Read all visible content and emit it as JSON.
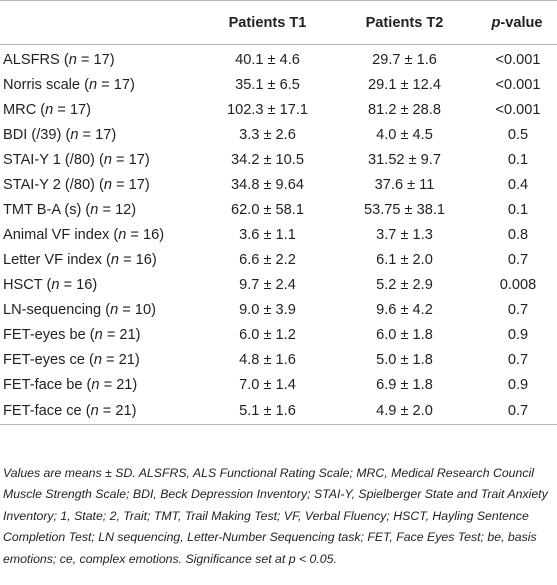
{
  "table": {
    "headers": [
      "",
      "Patients T1",
      "Patients T2",
      "p-value"
    ],
    "rows": [
      {
        "label": "ALSFRS",
        "n": "17",
        "t1": "40.1 ± 4.6",
        "t2": "29.7 ± 1.6",
        "p": "<0.001"
      },
      {
        "label": "Norris scale",
        "n": "17",
        "t1": "35.1 ± 6.5",
        "t2": "29.1 ± 12.4",
        "p": "<0.001"
      },
      {
        "label": "MRC",
        "n": "17",
        "t1": "102.3 ± 17.1",
        "t2": "81.2 ± 28.8",
        "p": "<0.001"
      },
      {
        "label": "BDI (/39)",
        "n": "17",
        "t1": "3.3 ± 2.6",
        "t2": "4.0 ± 4.5",
        "p": "0.5"
      },
      {
        "label": "STAI-Y 1 (/80)",
        "n": "17",
        "t1": "34.2 ± 10.5",
        "t2": "31.52 ± 9.7",
        "p": "0.1"
      },
      {
        "label": "STAI-Y 2 (/80)",
        "n": "17",
        "t1": "34.8 ± 9.64",
        "t2": "37.6 ± 11",
        "p": "0.4"
      },
      {
        "label": "TMT B-A (s)",
        "n": "12",
        "t1": "62.0 ± 58.1",
        "t2": "53.75 ± 38.1",
        "p": "0.1"
      },
      {
        "label": "Animal VF index",
        "n": "16",
        "t1": "3.6 ± 1.1",
        "t2": "3.7 ± 1.3",
        "p": "0.8"
      },
      {
        "label": "Letter VF index",
        "n": "16",
        "t1": "6.6 ± 2.2",
        "t2": "6.1 ± 2.0",
        "p": "0.7"
      },
      {
        "label": "HSCT",
        "n": "16",
        "t1": "9.7 ± 2.4",
        "t2": "5.2 ± 2.9",
        "p": "0.008"
      },
      {
        "label": "LN-sequencing",
        "n": "10",
        "t1": "9.0 ± 3.9",
        "t2": "9.6 ± 4.2",
        "p": "0.7"
      },
      {
        "label": "FET-eyes be",
        "n": "21",
        "t1": "6.0 ± 1.2",
        "t2": "6.0 ± 1.8",
        "p": "0.9"
      },
      {
        "label": "FET-eyes ce",
        "n": "21",
        "t1": "4.8 ± 1.6",
        "t2": "5.0 ± 1.8",
        "p": "0.7"
      },
      {
        "label": "FET-face be",
        "n": "21",
        "t1": "7.0 ± 1.4",
        "t2": "6.9 ± 1.8",
        "p": "0.9"
      },
      {
        "label": "FET-face ce",
        "n": "21",
        "t1": "5.1 ± 1.6",
        "t2": "4.9 ± 2.0",
        "p": "0.7"
      }
    ]
  },
  "footnote": "Values are means ± SD. ALSFRS, ALS Functional Rating Scale; MRC, Medical Research Council Muscle Strength Scale; BDI, Beck Depression Inventory; STAI-Y, Spielberger State and Trait Anxiety Inventory; 1, State; 2, Trait; TMT, Trail Making Test; VF, Verbal Fluency; HSCT, Hayling Sentence Completion Test; LN sequencing, Letter-Number Sequencing task; FET, Face Eyes Test; be, basis emotions; ce, complex emotions. Significance set at p < 0.05."
}
